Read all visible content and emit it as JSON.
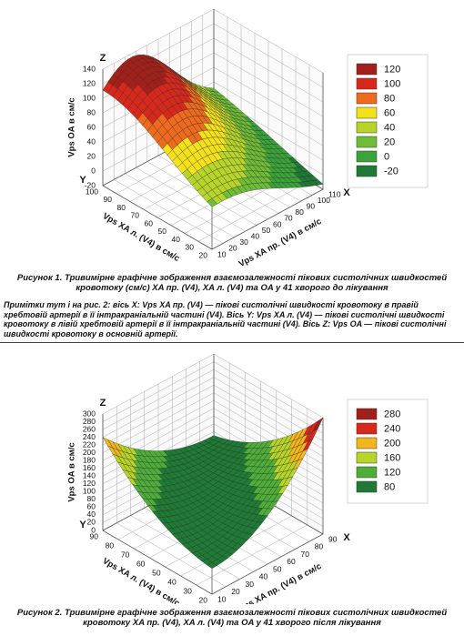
{
  "figures": [
    {
      "z_axis": {
        "letter": "Z",
        "title": "Vps OA в см/с",
        "ticks": [
          -20,
          0,
          20,
          40,
          60,
          80,
          100,
          120,
          140
        ]
      },
      "y_axis": {
        "letter": "Y",
        "title": "Vps XA л. (V4) в см/с",
        "ticks": [
          20,
          30,
          40,
          50,
          60,
          70,
          80,
          90,
          100
        ]
      },
      "x_axis": {
        "letter": "X",
        "title": "Vps XA пр. (V4) в см/с",
        "ticks": [
          10,
          20,
          30,
          40,
          50,
          60,
          70,
          80,
          90,
          100,
          110
        ]
      },
      "legend": [
        {
          "value": 120,
          "color": "#a3201a"
        },
        {
          "value": 100,
          "color": "#d8281c"
        },
        {
          "value": 80,
          "color": "#ee6a1e"
        },
        {
          "value": 60,
          "color": "#f4e11c"
        },
        {
          "value": 40,
          "color": "#b7d42a"
        },
        {
          "value": 20,
          "color": "#6ebd36"
        },
        {
          "value": 0,
          "color": "#3aa43a"
        },
        {
          "value": -20,
          "color": "#1e7a34"
        }
      ],
      "caption": "Рисунок 1. Тривимірне графічне зображення взаємозалежності пікових систолічних швидкостей кровотоку (см/с) XA пр. (V4), XA л. (V4) та OA у 41 хворого до лікування"
    },
    {
      "z_axis": {
        "letter": "Z",
        "title": "Vps OA в см/с",
        "ticks": [
          0,
          20,
          40,
          60,
          80,
          100,
          120,
          140,
          160,
          180,
          200,
          220,
          240,
          260,
          280,
          300
        ]
      },
      "y_axis": {
        "letter": "Y",
        "title": "Vps XA л. (V4) в см/с",
        "ticks": [
          20,
          30,
          40,
          50,
          60,
          70,
          80,
          90
        ]
      },
      "x_axis": {
        "letter": "X",
        "title": "Vps XA пр. (V4) в см/с",
        "ticks": [
          10,
          20,
          30,
          40,
          50,
          60,
          70,
          80,
          90
        ]
      },
      "legend": [
        {
          "value": 280,
          "color": "#a3201a"
        },
        {
          "value": 240,
          "color": "#d8281c"
        },
        {
          "value": 200,
          "color": "#f2b51c"
        },
        {
          "value": 160,
          "color": "#b7d42a"
        },
        {
          "value": 120,
          "color": "#4fae3a"
        },
        {
          "value": 80,
          "color": "#1e7a34"
        }
      ],
      "caption": "Рисунок 2. Тривимірне графічне зображення взаємозалежності пікових систолічних швидкостей кровотоку XA пр. (V4), XA л. (V4) та OA у 41 хворого після лікування"
    }
  ],
  "notes": "Примітки тут і на рис. 2: вісь X: Vps XA пр. (V4) — пікові систолічні швидкості кровотоку в правій хребтовій артерії в її інтракраніальній частині (V4). Вісь Y: Vps XA л. (V4) — пікові систолічні швидкості кровотоку в лівій хребтовій артерії в її інтракраніальній частині (V4). Вісь Z: Vps OA — пікові систолічні швидкості кровотоку в основній артерії."
}
